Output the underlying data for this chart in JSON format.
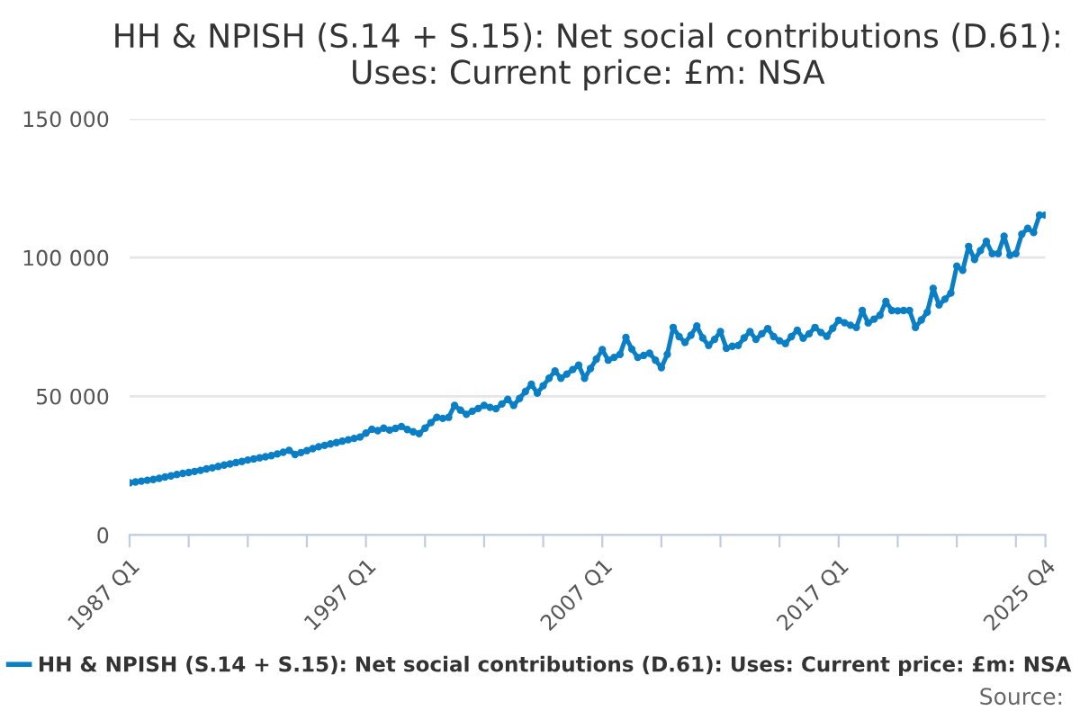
{
  "chart_data": {
    "type": "line",
    "title": "HH & NPISH (S.14 + S.15): Net social contributions (D.61):\nUses: Current price: £m: NSA",
    "categories": [
      "1987 Q1",
      null,
      null,
      null,
      null,
      null,
      null,
      null,
      null,
      null,
      null,
      null,
      null,
      null,
      null,
      null,
      null,
      null,
      null,
      null,
      null,
      null,
      null,
      null,
      null,
      null,
      null,
      null,
      null,
      null,
      null,
      null,
      null,
      null,
      null,
      null,
      null,
      null,
      null,
      null,
      "1997 Q1",
      null,
      null,
      null,
      null,
      null,
      null,
      null,
      null,
      null,
      null,
      null,
      null,
      null,
      null,
      null,
      null,
      null,
      null,
      null,
      null,
      null,
      null,
      null,
      null,
      null,
      null,
      null,
      null,
      null,
      null,
      null,
      null,
      null,
      null,
      null,
      null,
      null,
      null,
      null,
      "2007 Q1",
      null,
      null,
      null,
      null,
      null,
      null,
      null,
      null,
      null,
      null,
      null,
      null,
      null,
      null,
      null,
      null,
      null,
      null,
      null,
      null,
      null,
      null,
      null,
      null,
      null,
      null,
      null,
      null,
      null,
      null,
      null,
      null,
      null,
      null,
      null,
      null,
      null,
      null,
      null,
      "2017 Q1",
      null,
      null,
      null,
      null,
      null,
      null,
      null,
      null,
      null,
      null,
      null,
      null,
      null,
      null,
      null,
      null,
      null,
      null,
      null,
      null,
      null,
      null,
      null,
      null,
      null,
      null,
      null,
      null,
      null,
      null,
      null,
      null,
      null,
      null,
      "2025 Q4"
    ],
    "series": [
      {
        "name": "HH & NPISH (S.14 + S.15): Net social contributions (D.61): Uses: Current price: £m: NSA",
        "color": "#0b7fc5",
        "values": [
          18800,
          19100,
          19400,
          19700,
          20000,
          20400,
          20900,
          21300,
          21800,
          22200,
          22500,
          22900,
          23300,
          23800,
          24200,
          24700,
          25200,
          25600,
          26100,
          26500,
          27000,
          27400,
          27800,
          28200,
          28600,
          29200,
          29800,
          30500,
          29000,
          29700,
          30400,
          31100,
          31800,
          32300,
          32800,
          33300,
          33800,
          34300,
          34800,
          35300,
          36700,
          38100,
          37600,
          38500,
          37800,
          38400,
          39100,
          38000,
          37200,
          36500,
          38500,
          40500,
          42400,
          42000,
          42400,
          46700,
          45000,
          43500,
          44600,
          45600,
          46700,
          46000,
          45500,
          47200,
          48900,
          46700,
          49200,
          51700,
          54300,
          51100,
          53800,
          56500,
          59100,
          56500,
          58000,
          59600,
          61200,
          56500,
          60000,
          63400,
          66800,
          63000,
          64000,
          65100,
          71200,
          67000,
          64000,
          64700,
          65500,
          63000,
          60300,
          65100,
          74800,
          71500,
          69400,
          72000,
          75300,
          71000,
          68300,
          70500,
          73300,
          67300,
          68000,
          68300,
          71000,
          73300,
          70500,
          72500,
          74400,
          71500,
          70000,
          69000,
          71500,
          73800,
          70900,
          72500,
          74800,
          73000,
          71600,
          74500,
          77400,
          76500,
          75600,
          74800,
          80900,
          76400,
          77800,
          79200,
          84200,
          80900,
          80800,
          80900,
          80900,
          74800,
          77500,
          80300,
          88900,
          82900,
          85000,
          87200,
          96900,
          95400,
          104000,
          99300,
          102500,
          105800,
          101400,
          101400,
          107700,
          100800,
          101400,
          108400,
          110500,
          109000,
          115300,
          115300
        ]
      }
    ],
    "ylim": [
      0,
      150000
    ],
    "yticks": [
      {
        "value": 0,
        "label": "0"
      },
      {
        "value": 50000,
        "label": "50 000"
      },
      {
        "value": 100000,
        "label": "100 000"
      },
      {
        "value": 150000,
        "label": "150 000"
      }
    ],
    "grid": "y",
    "legend": "bottom",
    "marker": "circle",
    "line_style": "solid",
    "annotations": [
      "Source:"
    ]
  }
}
